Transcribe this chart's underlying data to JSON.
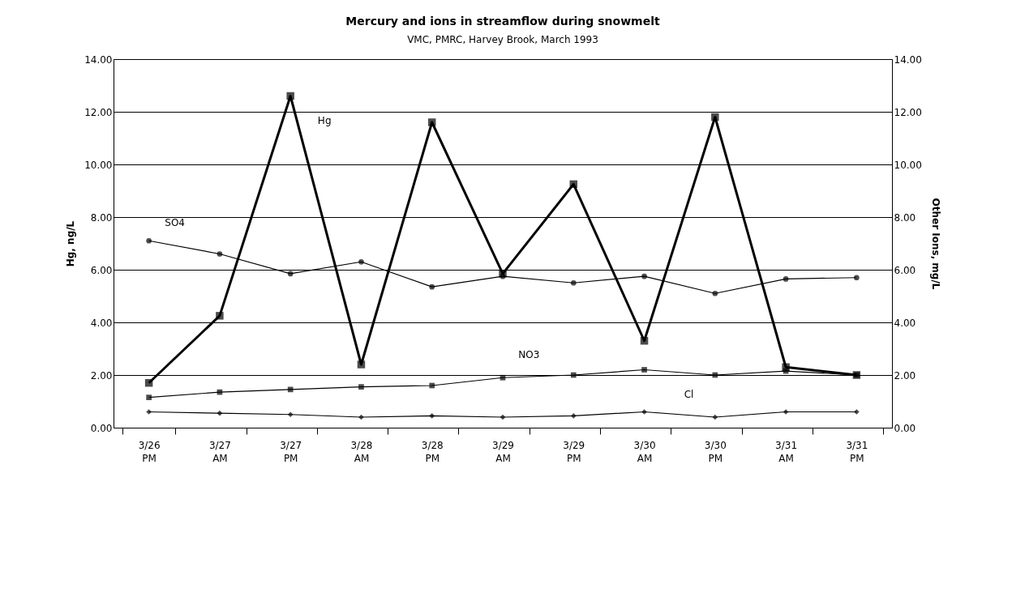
{
  "chart_data": {
    "type": "line",
    "title": "Mercury and ions in streamflow during snowmelt",
    "subtitle": "VMC, PMRC, Harvey Brook, March 1993",
    "ylabel": "Hg, ng/L",
    "y2label": "Other Ions, mg/L",
    "categories": [
      "3/26 PM",
      "3/27 AM",
      "3/27 PM",
      "3/28 AM",
      "3/28 PM",
      "3/29 AM",
      "3/29 PM",
      "3/30 AM",
      "3/30 PM",
      "3/31 AM",
      "3/31 PM"
    ],
    "series": [
      {
        "name": "Hg",
        "color": "#000000",
        "marker": "square",
        "values": [
          1.7,
          4.25,
          12.6,
          2.4,
          11.6,
          5.85,
          9.25,
          3.3,
          11.8,
          2.3,
          2.0
        ]
      },
      {
        "name": "SO4",
        "color": "#000000",
        "marker": "circle",
        "axis": "y2",
        "values": [
          7.1,
          6.6,
          5.85,
          6.3,
          5.35,
          5.75,
          5.5,
          5.75,
          5.1,
          5.65,
          5.7
        ]
      },
      {
        "name": "NO3",
        "color": "#000000",
        "marker": "square",
        "axis": "y2",
        "values": [
          1.15,
          1.35,
          1.45,
          1.55,
          1.6,
          1.9,
          2.0,
          2.2,
          2.0,
          2.15,
          2.0
        ]
      },
      {
        "name": "Cl",
        "color": "#000000",
        "marker": "diamond",
        "axis": "y2",
        "values": [
          0.6,
          0.55,
          0.5,
          0.4,
          0.45,
          0.4,
          0.45,
          0.6,
          0.4,
          0.6,
          0.6
        ]
      }
    ],
    "ylim": [
      0,
      14
    ],
    "yticks": [
      {
        "value": 0,
        "label": "0.00"
      },
      {
        "value": 2,
        "label": "2.00"
      },
      {
        "value": 4,
        "label": "4.00"
      },
      {
        "value": 6,
        "label": "6.00"
      },
      {
        "value": 8,
        "label": "8.00"
      },
      {
        "value": 10,
        "label": "10.00"
      },
      {
        "value": 12,
        "label": "12.00"
      },
      {
        "value": 14,
        "label": "14.00"
      }
    ],
    "y2lim": [
      0,
      14
    ],
    "y2ticks": [
      {
        "value": 0,
        "label": "0.00"
      },
      {
        "value": 2,
        "label": "2.00"
      },
      {
        "value": 4,
        "label": "4.00"
      },
      {
        "value": 6,
        "label": "6.00"
      },
      {
        "value": 8,
        "label": "8.00"
      },
      {
        "value": 10,
        "label": "10.00"
      },
      {
        "value": 12,
        "label": "12.00"
      },
      {
        "value": 14,
        "label": "14.00"
      }
    ],
    "grid": "y",
    "legend": false
  }
}
